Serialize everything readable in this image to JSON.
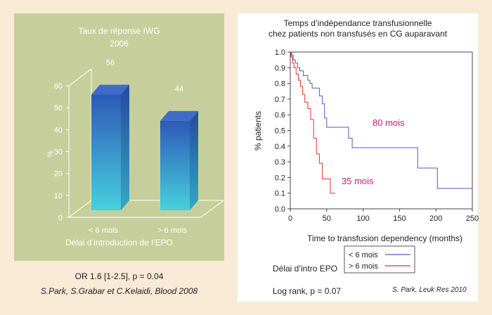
{
  "colors": {
    "page_bg": "#f9ead6",
    "left_panel_bg": "#c6cf9b",
    "right_panel_bg": "#ffffff",
    "bar_top": "#2e59b8",
    "bar_bottom": "#46d0dc",
    "series_gt6": "#e2352a",
    "series_lt6": "#4a5fb8",
    "magenta_label": "#c0207d"
  },
  "left": {
    "caption_line1": "OR 1.6 [1-2.5], p = 0.04",
    "caption_line2": "S.Park, S.Grabar et C.Kelaidi, Blood 2008"
  },
  "right": {
    "log_rank": "Log rank, p = 0.07",
    "citation": "S. Park, Leuk Res 2010",
    "legend_title": "Délai d’intro EPO"
  },
  "chart_data": [
    {
      "type": "bar",
      "title": "Taux de réponse IWG",
      "subtitle": "2006",
      "categories": [
        "< 6 mois",
        "> 6 mois"
      ],
      "values": [
        56,
        44
      ],
      "value_labels": [
        "56",
        "44"
      ],
      "ylabel": "%",
      "xlabel": "Délai d’introduction de l’EPO",
      "ylim": [
        0,
        60
      ],
      "yticks": [
        "0",
        "10",
        "20",
        "30",
        "40",
        "50",
        "60"
      ],
      "grid": false,
      "style": "3d-gradient"
    },
    {
      "type": "line",
      "subtype": "kaplan-meier-step",
      "title": "Temps d’indépendance transfusionnelle",
      "subtitle": "chez patients non transfusés en CG auparavant",
      "xlabel": "Time to transfusion dependency (months)",
      "ylabel": "% patients",
      "xlim": [
        0,
        250
      ],
      "ylim": [
        0,
        1.0
      ],
      "xticks": [
        "0",
        "50",
        "100",
        "150",
        "200",
        "250"
      ],
      "yticks": [
        "0.0",
        "0.1",
        "0.2",
        "0.3",
        "0.4",
        "0.5",
        "0.6",
        "0.7",
        "0.8",
        "0.9",
        "1.0"
      ],
      "grid": false,
      "legend_position": "bottom-right",
      "annotations": [
        "80 mois",
        "35 mois"
      ],
      "series": [
        {
          "name": "< 6 mois",
          "color": "#4a5fb8",
          "x": [
            0,
            2,
            2,
            4,
            4,
            7,
            7,
            10,
            10,
            13,
            13,
            18,
            18,
            24,
            24,
            27,
            27,
            30,
            30,
            40,
            40,
            44,
            44,
            47,
            47,
            50,
            50,
            80,
            80,
            85,
            85,
            175,
            175,
            202,
            202,
            250
          ],
          "y": [
            1.0,
            1.0,
            0.98,
            0.98,
            0.95,
            0.95,
            0.93,
            0.93,
            0.9,
            0.9,
            0.88,
            0.88,
            0.85,
            0.85,
            0.82,
            0.82,
            0.8,
            0.8,
            0.77,
            0.77,
            0.72,
            0.72,
            0.67,
            0.67,
            0.58,
            0.58,
            0.52,
            0.52,
            0.45,
            0.45,
            0.39,
            0.39,
            0.26,
            0.26,
            0.13,
            0.13
          ]
        },
        {
          "name": "> 6 mois",
          "color": "#e2352a",
          "x": [
            0,
            1,
            1,
            3,
            3,
            5,
            5,
            8,
            8,
            11,
            11,
            14,
            14,
            17,
            17,
            20,
            20,
            24,
            24,
            28,
            28,
            32,
            32,
            36,
            36,
            40,
            40,
            44,
            44,
            55,
            55,
            62
          ],
          "y": [
            1.0,
            1.0,
            0.97,
            0.97,
            0.93,
            0.93,
            0.9,
            0.9,
            0.86,
            0.86,
            0.82,
            0.82,
            0.78,
            0.78,
            0.73,
            0.73,
            0.68,
            0.68,
            0.64,
            0.64,
            0.57,
            0.57,
            0.45,
            0.45,
            0.35,
            0.35,
            0.29,
            0.29,
            0.19,
            0.19,
            0.1,
            0.1
          ]
        }
      ]
    }
  ]
}
